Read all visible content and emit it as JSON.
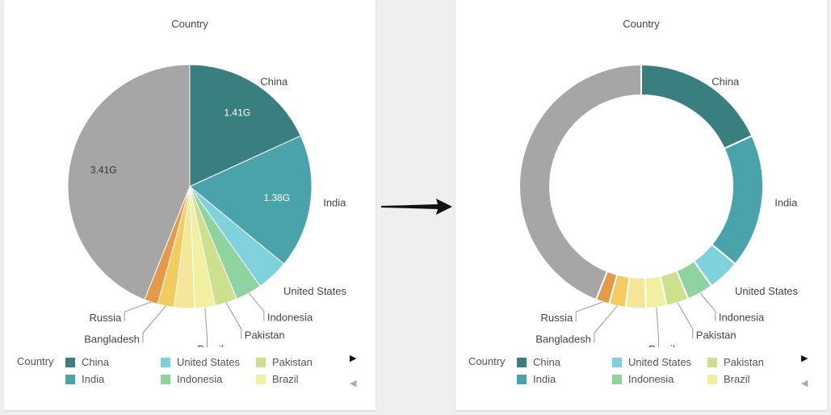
{
  "colors": {
    "China": "#3a7f7f",
    "India": "#4aa3aa",
    "United States": "#7fd1db",
    "Indonesia": "#8fd4a0",
    "Pakistan": "#cde08e",
    "Brazil": "#f0f0a0",
    "Slice7": "#f5e79a",
    "Bangladesh": "#f3cc60",
    "Russia": "#e59a4a",
    "Others": "#a6a6a6"
  },
  "charts": {
    "left": {
      "title": "Country",
      "chart_data": {
        "type": "pie",
        "title": "Country",
        "slices": [
          {
            "label": "China",
            "value": 1.41,
            "value_label": "1.41G",
            "show_label": true,
            "color_key": "China"
          },
          {
            "label": "India",
            "value": 1.38,
            "value_label": "1.38G",
            "show_label": true,
            "color_key": "India"
          },
          {
            "label": "United States",
            "value": 0.33,
            "value_label": "",
            "show_label": true,
            "color_key": "United States"
          },
          {
            "label": "Indonesia",
            "value": 0.27,
            "value_label": "",
            "show_label": true,
            "color_key": "Indonesia"
          },
          {
            "label": "Pakistan",
            "value": 0.23,
            "value_label": "",
            "show_label": true,
            "color_key": "Pakistan"
          },
          {
            "label": "Brazil",
            "value": 0.21,
            "value_label": "",
            "show_label": true,
            "color_key": "Brazil"
          },
          {
            "label": "",
            "value": 0.21,
            "value_label": "",
            "show_label": false,
            "color_key": "Slice7"
          },
          {
            "label": "Bangladesh",
            "value": 0.17,
            "value_label": "",
            "show_label": true,
            "color_key": "Bangladesh"
          },
          {
            "label": "Russia",
            "value": 0.14,
            "value_label": "",
            "show_label": true,
            "color_key": "Russia"
          },
          {
            "label": "",
            "value": 3.41,
            "value_label": "3.41G",
            "show_label": false,
            "color_key": "Others"
          }
        ]
      }
    },
    "right": {
      "title": "Country",
      "chart_data": {
        "type": "donut",
        "title": "Country",
        "slices": [
          {
            "label": "China",
            "value": 1.41,
            "value_label": "",
            "show_label": true,
            "color_key": "China"
          },
          {
            "label": "India",
            "value": 1.38,
            "value_label": "",
            "show_label": true,
            "color_key": "India"
          },
          {
            "label": "United States",
            "value": 0.33,
            "value_label": "",
            "show_label": true,
            "color_key": "United States"
          },
          {
            "label": "Indonesia",
            "value": 0.27,
            "value_label": "",
            "show_label": true,
            "color_key": "Indonesia"
          },
          {
            "label": "Pakistan",
            "value": 0.23,
            "value_label": "",
            "show_label": true,
            "color_key": "Pakistan"
          },
          {
            "label": "Brazil",
            "value": 0.21,
            "value_label": "",
            "show_label": true,
            "color_key": "Brazil"
          },
          {
            "label": "",
            "value": 0.21,
            "value_label": "",
            "show_label": false,
            "color_key": "Slice7"
          },
          {
            "label": "Bangladesh",
            "value": 0.17,
            "value_label": "",
            "show_label": true,
            "color_key": "Bangladesh"
          },
          {
            "label": "Russia",
            "value": 0.14,
            "value_label": "",
            "show_label": true,
            "color_key": "Russia"
          },
          {
            "label": "",
            "value": 3.41,
            "value_label": "",
            "show_label": false,
            "color_key": "Others"
          }
        ]
      }
    }
  },
  "legend": {
    "title": "Country",
    "items": [
      "China",
      "India",
      "United States",
      "Indonesia",
      "Pakistan",
      "Brazil"
    ],
    "next_icon": "triangle-right",
    "prev_icon": "triangle-left"
  }
}
